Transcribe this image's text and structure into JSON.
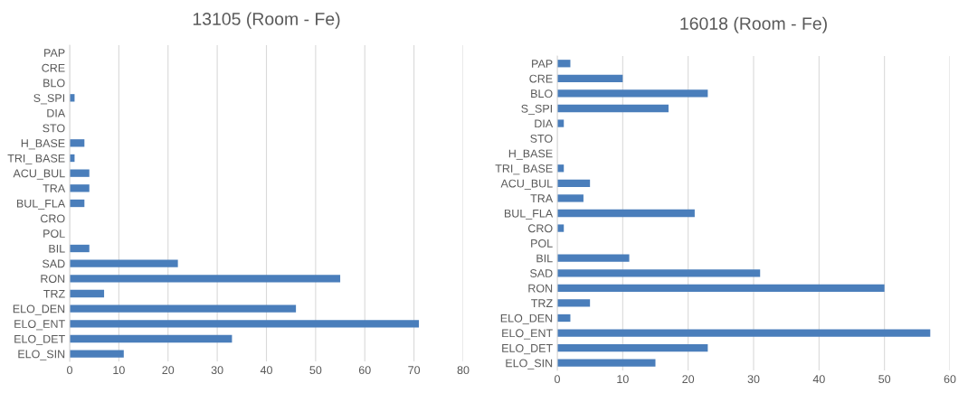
{
  "chart_data": [
    {
      "type": "bar",
      "orientation": "horizontal",
      "title": "13105 (Room - Fe)",
      "categories": [
        "PAP",
        "CRE",
        "BLO",
        "S_SPI",
        "DIA",
        "STO",
        "H_BASE",
        "TRI_ BASE",
        "ACU_BUL",
        "TRA",
        "BUL_FLA",
        "CRO",
        "POL",
        "BIL",
        "SAD",
        "RON",
        "TRZ",
        "ELO_DEN",
        "ELO_ENT",
        "ELO_DET",
        "ELO_SIN"
      ],
      "values": [
        0,
        0,
        0,
        1,
        0,
        0,
        3,
        1,
        4,
        4,
        3,
        0,
        0,
        4,
        22,
        55,
        7,
        46,
        71,
        33,
        11
      ],
      "color": "#4a7ebb",
      "xlim": [
        0,
        80
      ],
      "xticks": [
        0,
        10,
        20,
        30,
        40,
        50,
        60,
        70,
        80
      ],
      "grid": "x",
      "legend": false
    },
    {
      "type": "bar",
      "orientation": "horizontal",
      "title": "16018 (Room - Fe)",
      "categories": [
        "PAP",
        "CRE",
        "BLO",
        "S_SPI",
        "DIA",
        "STO",
        "H_BASE",
        "TRI_ BASE",
        "ACU_BUL",
        "TRA",
        "BUL_FLA",
        "CRO",
        "POL",
        "BIL",
        "SAD",
        "RON",
        "TRZ",
        "ELO_DEN",
        "ELO_ENT",
        "ELO_DET",
        "ELO_SIN"
      ],
      "values": [
        2,
        10,
        23,
        17,
        1,
        0,
        0,
        1,
        5,
        4,
        21,
        1,
        0,
        11,
        31,
        50,
        5,
        2,
        57,
        23,
        15
      ],
      "color": "#4a7ebb",
      "xlim": [
        0,
        60
      ],
      "xticks": [
        0,
        10,
        20,
        30,
        40,
        50,
        60
      ],
      "grid": "x",
      "legend": false
    }
  ]
}
